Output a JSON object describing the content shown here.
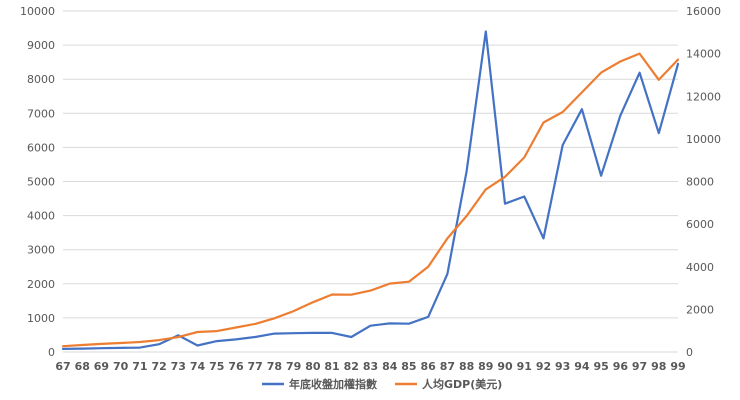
{
  "chart_data": {
    "type": "line",
    "title": "",
    "x": [
      "67",
      "68",
      "69",
      "70",
      "71",
      "72",
      "73",
      "74",
      "75",
      "76",
      "77",
      "78",
      "79",
      "80",
      "81",
      "82",
      "83",
      "84",
      "85",
      "86",
      "87",
      "88",
      "89",
      "90",
      "91",
      "92",
      "93",
      "94",
      "95",
      "96",
      "97",
      "98",
      "99"
    ],
    "y_left_ticks": [
      "0",
      "1000",
      "2000",
      "3000",
      "4000",
      "5000",
      "6000",
      "7000",
      "8000",
      "9000",
      "10000"
    ],
    "y_right_ticks": [
      "0",
      "2000",
      "4000",
      "6000",
      "8000",
      "10000",
      "12000",
      "14000",
      "16000"
    ],
    "ylim_left": [
      0,
      10000
    ],
    "ylim_right": [
      0,
      16000
    ],
    "grid": true,
    "legend_position": "bottom",
    "series": [
      {
        "name": "年底收盤加權指數",
        "axis": "left",
        "color": "#4472c4",
        "values": [
          90,
          100,
          110,
          120,
          130,
          230,
          490,
          190,
          320,
          370,
          440,
          540,
          550,
          560,
          560,
          440,
          770,
          840,
          830,
          1030,
          2290,
          5300,
          9400,
          4350,
          4560,
          3330,
          6070,
          7120,
          5170,
          6930,
          8190,
          6420,
          8450
        ]
      },
      {
        "name": "人均GDP(美元)",
        "axis": "right",
        "color": "#ed7d31",
        "values": [
          270,
          330,
          380,
          420,
          470,
          560,
          700,
          940,
          980,
          1150,
          1320,
          1580,
          1920,
          2330,
          2700,
          2690,
          2880,
          3210,
          3300,
          4000,
          5330,
          6380,
          7630,
          8220,
          9130,
          10770,
          11260,
          12180,
          13110,
          13630,
          14000,
          12770,
          13720
        ]
      }
    ]
  }
}
